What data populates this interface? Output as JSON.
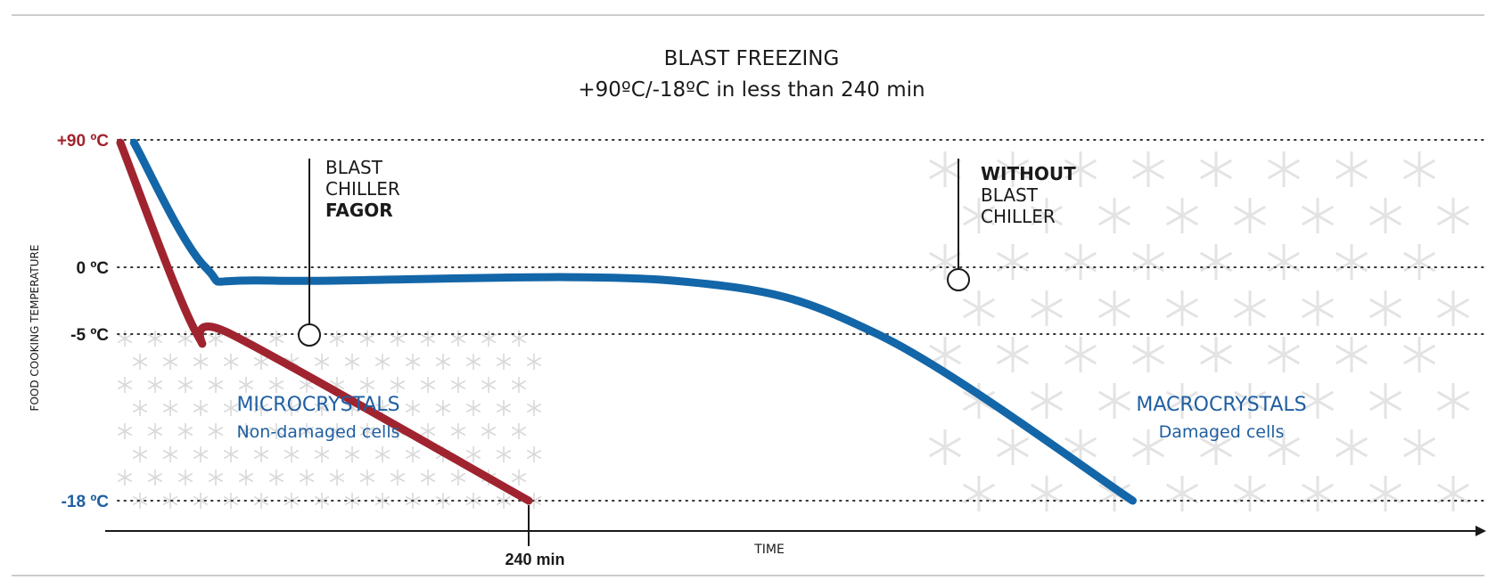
{
  "chart_data": {
    "type": "line",
    "title": "BLAST FREEZING",
    "subtitle": "+90ºC/-18ºC in less than 240 min",
    "ylabel": "FOOD COOKING TEMPERATURE",
    "xlabel": "TIME",
    "y_ticks": [
      {
        "value": 90,
        "label": "+90 ºC",
        "color": "#a0242f"
      },
      {
        "value": 0,
        "label": "0 ºC",
        "color": "#1a1a1a"
      },
      {
        "value": -5,
        "label": "-5 ºC",
        "color": "#1a1a1a"
      },
      {
        "value": -18,
        "label": "-18 ºC",
        "color": "#1f5fa1"
      }
    ],
    "ylim": [
      -18,
      90
    ],
    "x_marker": {
      "label": "240 min"
    },
    "grid": "dotted horizontal at tick values",
    "series": [
      {
        "key": "fagor",
        "color": "#a0242f",
        "points": [
          [
            0,
            88
          ],
          [
            45,
            -5
          ],
          [
            65,
            -5
          ],
          [
            240,
            -18
          ]
        ]
      },
      {
        "key": "without",
        "color": "#1366a8",
        "points": [
          [
            8,
            88
          ],
          [
            50,
            0
          ],
          [
            90,
            -1
          ],
          [
            325,
            -1
          ],
          [
            445,
            -5
          ],
          [
            595,
            -18
          ]
        ]
      }
    ],
    "annotations": [
      {
        "key": "with_blast",
        "lines": [
          "BLAST",
          "CHILLER"
        ],
        "bold": "FAGOR"
      },
      {
        "key": "without_blast",
        "bold": "WITHOUT",
        "lines": [
          "BLAST",
          "CHILLER"
        ]
      }
    ],
    "regions": [
      {
        "key": "micro",
        "title": "MICROCRYSTALS",
        "subtitle": "Non-damaged cells"
      },
      {
        "key": "macro",
        "title": "MACROCRYSTALS",
        "subtitle": "Damaged cells"
      }
    ]
  }
}
